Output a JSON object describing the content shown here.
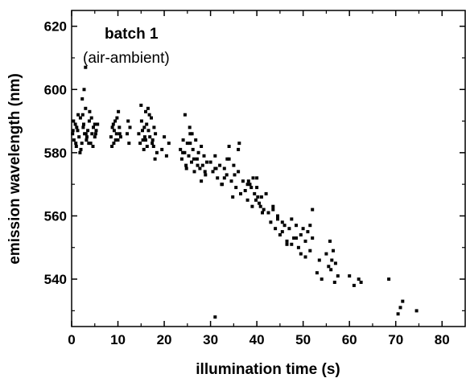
{
  "chart_data": {
    "type": "scatter",
    "title": "",
    "xlabel": "illumination time (s)",
    "ylabel": "emission wavelength (nm)",
    "xlim": [
      0,
      85
    ],
    "ylim": [
      525,
      625
    ],
    "xticks": [
      0,
      10,
      20,
      30,
      40,
      50,
      60,
      70,
      80
    ],
    "yticks": [
      540,
      560,
      580,
      600,
      620
    ],
    "grid": false,
    "legend": "none",
    "marker_color": "#000000",
    "annotations": [
      {
        "text": "batch 1",
        "style": "bold"
      },
      {
        "text": "(air-ambient)",
        "style": "normal"
      }
    ],
    "series": [
      {
        "x": [
          0.2,
          0.5,
          0.8,
          1.0,
          1.3,
          1.6,
          1.9,
          2.2,
          2.5,
          2.8,
          3.0,
          3.2,
          3.5,
          3.8,
          4.1,
          4.4,
          4.7,
          5.0,
          5.3,
          5.6,
          0.4,
          0.9,
          1.4,
          2.0,
          2.6,
          3.3,
          3.9,
          4.6,
          5.2,
          0.3,
          1.1,
          1.8,
          2.4,
          3.1,
          3.7,
          4.3,
          5.0,
          2.7,
          3.0,
          2.3,
          8.5,
          8.8,
          9.1,
          9.4,
          9.7,
          10.0,
          10.3,
          10.6,
          8.7,
          9.2,
          9.8,
          10.4,
          9.0,
          9.5,
          10.1,
          12.0,
          12.2,
          12.4,
          12.6,
          14.5,
          14.8,
          15.1,
          15.4,
          15.7,
          16.0,
          16.3,
          16.6,
          16.9,
          17.2,
          17.5,
          17.8,
          18.1,
          18.4,
          15.0,
          15.6,
          16.2,
          16.8,
          17.4,
          18.0,
          15.3,
          16.5,
          17.7,
          16.0,
          15.8,
          19.5,
          20.0,
          20.5,
          21.0,
          23.5,
          23.8,
          24.1,
          24.4,
          24.7,
          25.0,
          25.3,
          25.6,
          25.9,
          26.2,
          26.5,
          26.8,
          27.1,
          27.4,
          27.7,
          28.0,
          28.3,
          28.6,
          28.9,
          29.2,
          24.0,
          24.8,
          25.6,
          26.4,
          27.2,
          28.0,
          28.8,
          25.5,
          24.5,
          26.0,
          30.0,
          30.5,
          31.0,
          31.5,
          32.0,
          32.5,
          33.0,
          33.5,
          34.0,
          34.5,
          35.0,
          35.5,
          36.0,
          36.5,
          37.0,
          31.2,
          32.4,
          33.6,
          34.8,
          36.0,
          34.0,
          35.2,
          36.2,
          33.0,
          31.0,
          37.5,
          38.0,
          38.5,
          39.0,
          39.5,
          40.0,
          40.5,
          41.0,
          41.5,
          42.0,
          38.2,
          39.2,
          40.2,
          41.2,
          38.8,
          39.8,
          40.8,
          38.0,
          40.0,
          42.5,
          43.0,
          43.5,
          44.0,
          44.5,
          45.0,
          45.5,
          46.0,
          46.5,
          47.0,
          47.5,
          48.0,
          48.5,
          49.0,
          49.5,
          50.0,
          50.5,
          51.0,
          51.5,
          52.0,
          43.5,
          45.5,
          47.5,
          49.5,
          51.5,
          44.5,
          46.5,
          48.5,
          50.5,
          52.0,
          53.0,
          53.5,
          54.0,
          55.0,
          55.5,
          56.0,
          56.5,
          57.0,
          57.5,
          55.8,
          56.8,
          56.2,
          60.0,
          61.0,
          62.0,
          62.5,
          68.5,
          70.5,
          71.0,
          71.5,
          74.5,
          31.0
        ],
        "y": [
          586,
          584,
          589,
          582,
          587,
          585,
          591,
          583,
          588,
          586,
          594,
          584,
          587,
          590,
          583,
          586,
          588,
          585,
          587,
          589,
          590,
          583,
          592,
          581,
          589,
          585,
          593,
          582,
          586,
          587,
          588,
          580,
          592,
          586,
          583,
          591,
          589,
          600,
          607,
          597,
          585,
          588,
          583,
          590,
          586,
          584,
          588,
          585,
          582,
          587,
          591,
          586,
          589,
          584,
          593,
          586,
          590,
          583,
          588,
          586,
          583,
          590,
          584,
          588,
          593,
          582,
          587,
          585,
          591,
          584,
          588,
          586,
          580,
          595,
          581,
          589,
          592,
          583,
          578,
          587,
          594,
          582,
          584,
          585,
          581,
          585,
          579,
          583,
          581,
          578,
          584,
          580,
          576,
          583,
          579,
          586,
          577,
          581,
          574,
          584,
          578,
          580,
          575,
          582,
          576,
          579,
          573,
          577,
          580,
          575,
          583,
          578,
          576,
          571,
          574,
          588,
          592,
          586,
          577,
          574,
          579,
          572,
          576,
          570,
          575,
          573,
          578,
          571,
          576,
          569,
          574,
          567,
          571,
          575,
          570,
          578,
          566,
          581,
          582,
          573,
          583,
          572,
          575,
          568,
          565,
          570,
          563,
          567,
          569,
          564,
          566,
          562,
          567,
          571,
          572,
          566,
          561,
          569,
          565,
          563,
          570,
          572,
          561,
          558,
          563,
          556,
          560,
          554,
          558,
          557,
          552,
          556,
          559,
          553,
          557,
          550,
          554,
          556,
          552,
          555,
          549,
          553,
          562,
          555,
          551,
          548,
          557,
          559,
          551,
          553,
          547,
          562,
          542,
          546,
          540,
          548,
          544,
          543,
          549,
          545,
          541,
          552,
          539,
          546,
          541,
          538,
          540,
          539,
          540,
          529,
          531,
          533,
          530,
          528
        ]
      }
    ]
  }
}
